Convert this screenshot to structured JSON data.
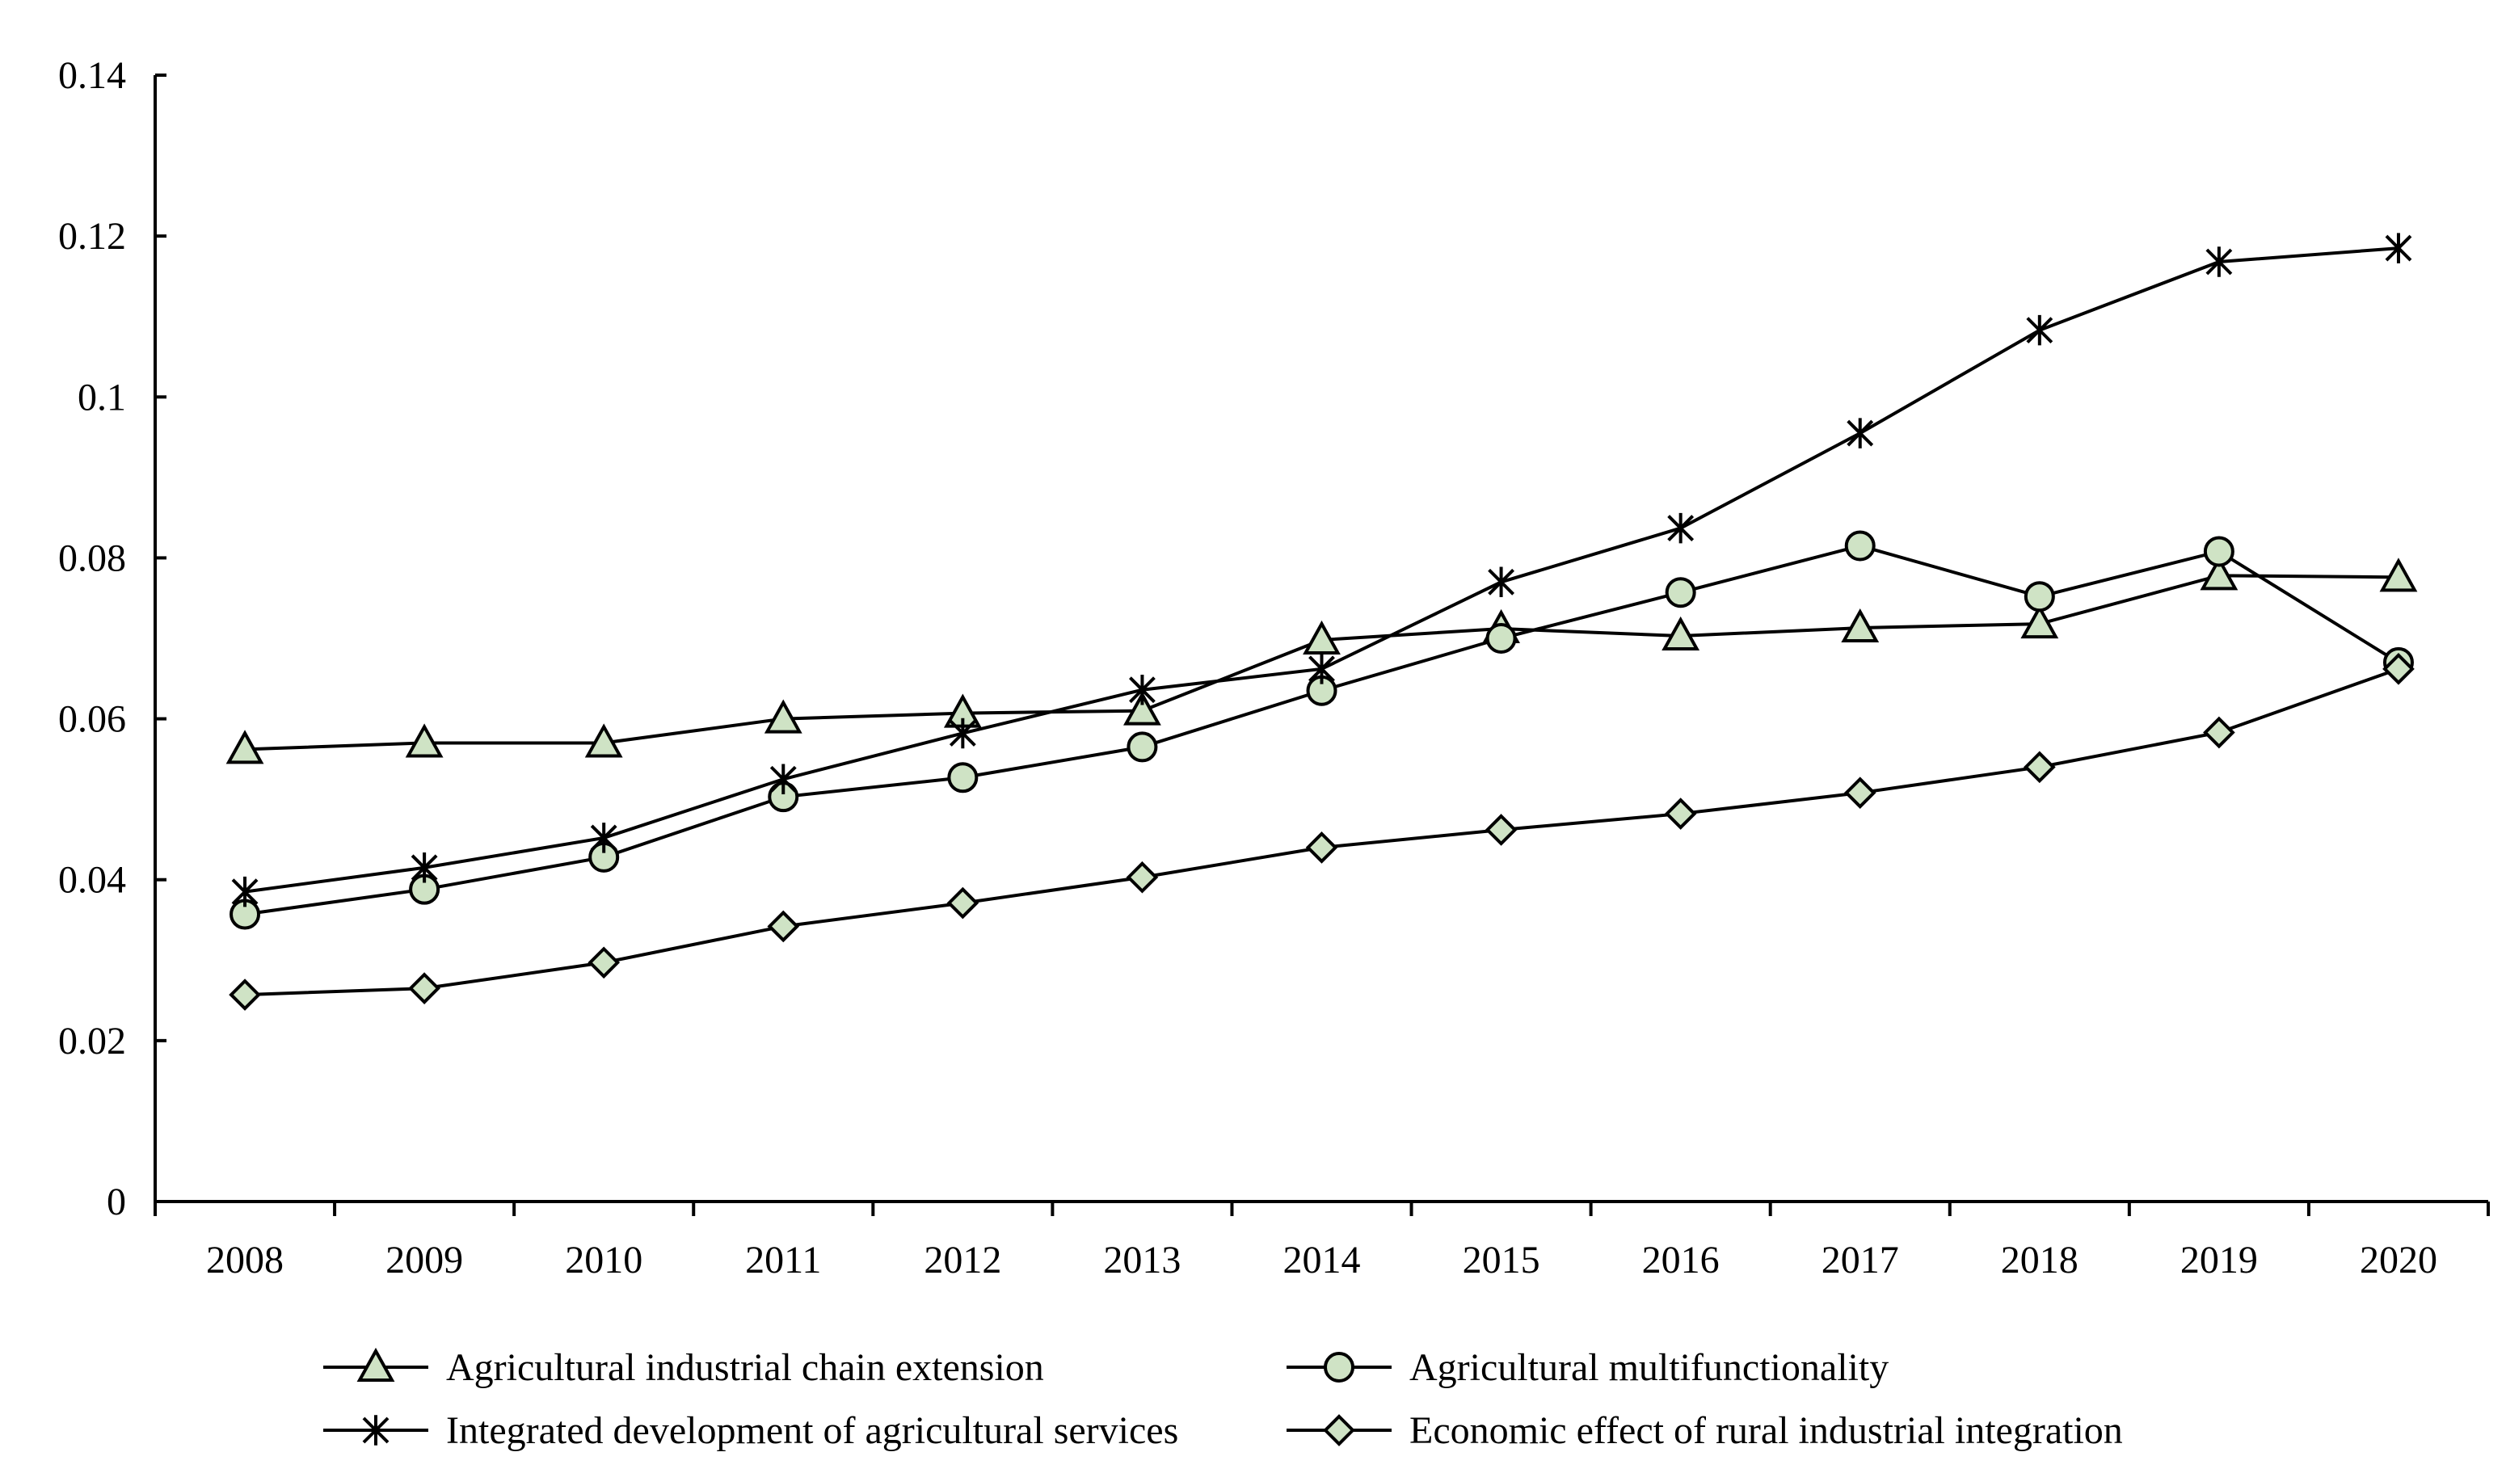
{
  "chart_data": {
    "type": "line",
    "title": "",
    "xlabel": "",
    "ylabel": "",
    "categories": [
      "2008",
      "2009",
      "2010",
      "2011",
      "2012",
      "2013",
      "2014",
      "2015",
      "2016",
      "2017",
      "2018",
      "2019",
      "2020"
    ],
    "ylim": [
      0,
      0.14
    ],
    "yticks": [
      0,
      0.02,
      0.04,
      0.06,
      0.08,
      0.1,
      0.12,
      0.14
    ],
    "ytick_labels": [
      "0",
      "0.02",
      "0.04",
      "0.06",
      "0.08",
      "0.1",
      "0.12",
      "0.14"
    ],
    "grid": false,
    "legend": "bottom",
    "series": [
      {
        "name": "Agricultural industrial chain extension",
        "marker": "triangle",
        "values": [
          0.0562,
          0.057,
          0.057,
          0.06,
          0.0607,
          0.061,
          0.0698,
          0.0712,
          0.0703,
          0.0713,
          0.0718,
          0.0778,
          0.0776
        ]
      },
      {
        "name": "Agricultural multifunctionality",
        "marker": "circle",
        "values": [
          0.0357,
          0.0388,
          0.0428,
          0.0503,
          0.0527,
          0.0565,
          0.0635,
          0.07,
          0.0757,
          0.0815,
          0.0752,
          0.0808,
          0.067
        ]
      },
      {
        "name": "Integrated development of agricultural services",
        "marker": "star",
        "values": [
          0.0385,
          0.0415,
          0.0452,
          0.0525,
          0.0582,
          0.0636,
          0.0662,
          0.077,
          0.0837,
          0.0955,
          0.1083,
          0.1168,
          0.1185
        ]
      },
      {
        "name": "Economic effect of rural industrial integration",
        "marker": "diamond",
        "values": [
          0.0257,
          0.0265,
          0.0297,
          0.0342,
          0.0371,
          0.0403,
          0.044,
          0.0462,
          0.0482,
          0.0508,
          0.054,
          0.0583,
          0.0662
        ]
      }
    ]
  }
}
